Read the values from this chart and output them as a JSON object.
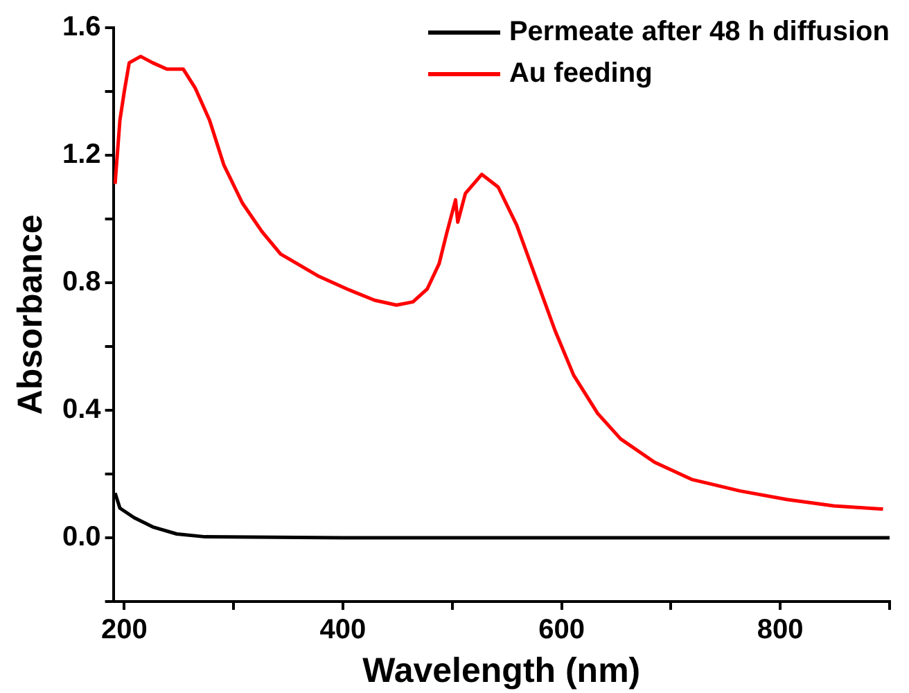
{
  "chart_data": {
    "type": "line",
    "xlabel": "Wavelength (nm)",
    "ylabel": "Absorbance",
    "xlim": [
      190,
      900
    ],
    "xticks": [
      200,
      {
        "value": 300,
        "label": null
      },
      400,
      {
        "value": 500,
        "label": null
      },
      600,
      {
        "value": 700,
        "label": null
      },
      800,
      {
        "value": 900,
        "label": null
      }
    ],
    "ylim": [
      -0.2,
      1.6
    ],
    "yticks": [
      {
        "value": -0.2,
        "label": null
      },
      "0.0",
      {
        "value": 0.2,
        "label": null
      },
      0.4,
      {
        "value": 0.6,
        "label": null
      },
      0.8,
      {
        "value": 1.0,
        "label": null
      },
      1.2,
      {
        "value": 1.4,
        "label": null
      },
      1.6
    ],
    "grid": false,
    "legend": "top right",
    "marker": "none",
    "line_style": "solid",
    "series": [
      {
        "name": "Permeate after 48 h diffusion",
        "color": "#000000",
        "x": [
          191.6,
          196,
          209,
          226,
          248,
          274,
          400,
          600,
          800,
          900
        ],
        "values": [
          0.14,
          0.093,
          0.063,
          0.034,
          0.012,
          0.003,
          0,
          0,
          0,
          0
        ]
      },
      {
        "name": "Au feeding",
        "color": "#ff0000",
        "x": [
          191.6,
          196,
          200,
          204.5,
          215,
          226,
          239,
          254,
          265,
          278,
          291,
          308,
          326,
          343,
          358,
          378,
          404,
          429,
          449,
          464,
          477,
          488,
          494.5,
          503,
          505,
          512,
          527,
          542,
          559,
          577,
          594,
          611,
          633,
          654,
          685,
          719,
          763,
          806,
          849,
          894
        ],
        "values": [
          1.11,
          1.31,
          1.4,
          1.49,
          1.51,
          1.49,
          1.47,
          1.47,
          1.41,
          1.31,
          1.17,
          1.05,
          0.96,
          0.89,
          0.86,
          0.82,
          0.78,
          0.745,
          0.73,
          0.74,
          0.78,
          0.86,
          0.95,
          1.06,
          0.99,
          1.08,
          1.14,
          1.1,
          0.98,
          0.81,
          0.65,
          0.51,
          0.39,
          0.31,
          0.237,
          0.183,
          0.147,
          0.12,
          0.1,
          0.09
        ]
      }
    ]
  }
}
